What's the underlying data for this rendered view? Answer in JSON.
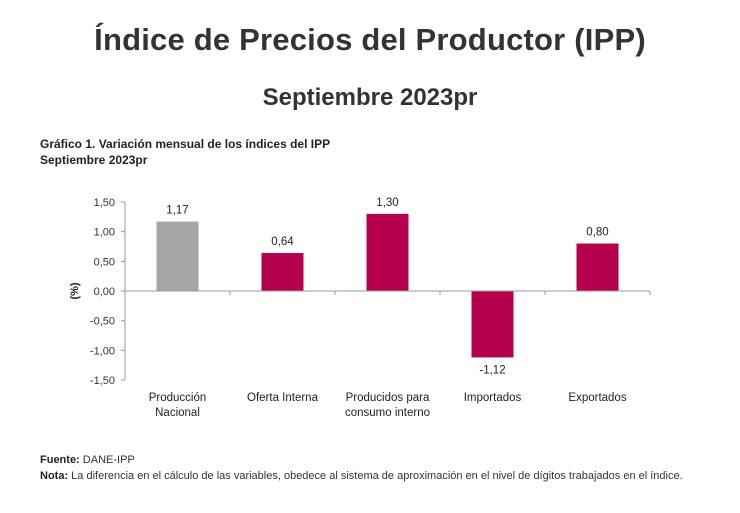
{
  "header": {
    "title": "Índice de Precios del Productor (IPP)",
    "subtitle": "Septiembre 2023pr"
  },
  "caption": {
    "line1": "Gráfico 1. Variación mensual de los índices del IPP",
    "line2": "Septiembre 2023pr"
  },
  "chart_data": {
    "type": "bar",
    "title": "Gráfico 1. Variación mensual de los índices del IPP",
    "subtitle": "Septiembre 2023pr",
    "ylabel": "(%)",
    "xlabel": "",
    "ylim": [
      -1.5,
      1.5
    ],
    "yticks": [
      "1,50",
      "1,00",
      "0,50",
      "0,00",
      "-0,50",
      "-1,00",
      "-1,50"
    ],
    "ytick_values": [
      1.5,
      1.0,
      0.5,
      0.0,
      -0.5,
      -1.0,
      -1.5
    ],
    "grid": false,
    "categories": [
      [
        "Producción",
        "Nacional"
      ],
      [
        "Oferta Interna"
      ],
      [
        "Producidos para",
        "consumo interno"
      ],
      [
        "Importados"
      ],
      [
        "Exportados"
      ]
    ],
    "values": [
      1.17,
      0.64,
      1.3,
      -1.12,
      0.8
    ],
    "value_labels": [
      "1,17",
      "0,64",
      "1,30",
      "-1,12",
      "0,80"
    ],
    "colors": [
      "#a6a6a6",
      "#b5004e",
      "#b5004e",
      "#b5004e",
      "#b5004e"
    ]
  },
  "footer": {
    "source_label": "Fuente:",
    "source_text": " DANE-IPP",
    "note_label": "Nota:",
    "note_text": " La diferencia en el cálculo de las variables, obedece al sistema de aproximación en el nivel de dígitos trabajados en el índice."
  }
}
